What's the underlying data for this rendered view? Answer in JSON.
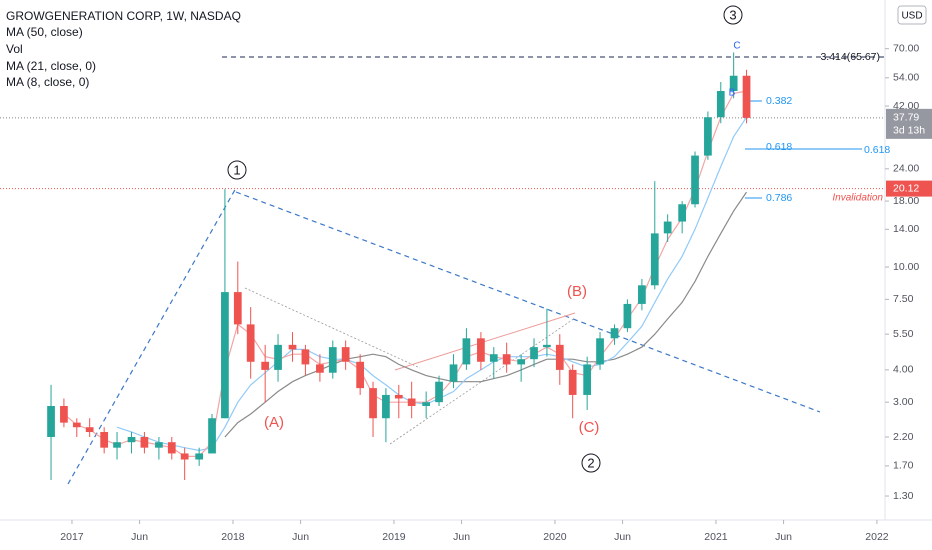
{
  "chart_data": {
    "type": "candlestick",
    "title": "GROWGENERATION CORP, 1W, NASDAQ",
    "volume_label": "Vol",
    "currency": "USD",
    "log_scale": true,
    "up_color": "#26a69a",
    "down_color": "#ef5350",
    "x": [
      2016.87,
      2016.95,
      2017.03,
      2017.11,
      2017.2,
      2017.28,
      2017.37,
      2017.45,
      2017.54,
      2017.62,
      2017.7,
      2017.79,
      2017.87,
      2017.95,
      2018.03,
      2018.11,
      2018.2,
      2018.28,
      2018.37,
      2018.45,
      2018.54,
      2018.62,
      2018.7,
      2018.79,
      2018.87,
      2018.95,
      2019.03,
      2019.11,
      2019.2,
      2019.28,
      2019.37,
      2019.45,
      2019.54,
      2019.62,
      2019.7,
      2019.79,
      2019.87,
      2019.95,
      2020.03,
      2020.11,
      2020.2,
      2020.28,
      2020.37,
      2020.45,
      2020.54,
      2020.62,
      2020.7,
      2020.79,
      2020.87,
      2020.95,
      2021.03,
      2021.11,
      2021.19
    ],
    "open": [
      2.2,
      2.9,
      2.5,
      2.4,
      2.3,
      2.0,
      2.1,
      2.2,
      2.0,
      2.1,
      1.9,
      1.8,
      1.9,
      2.6,
      8.0,
      6.0,
      4.3,
      4.0,
      5.0,
      4.8,
      4.2,
      3.9,
      4.9,
      4.3,
      3.4,
      2.6,
      3.2,
      3.1,
      2.9,
      3.0,
      3.6,
      4.2,
      5.3,
      4.3,
      4.6,
      4.2,
      4.4,
      4.9,
      5.0,
      4.0,
      3.2,
      4.2,
      5.3,
      5.8,
      7.2,
      8.5,
      13.5,
      15.0,
      17.5,
      27.0,
      38.0,
      48.0,
      55.0
    ],
    "high": [
      3.5,
      3.1,
      2.6,
      2.6,
      2.4,
      2.3,
      2.3,
      2.3,
      2.2,
      2.2,
      2.0,
      2.0,
      2.7,
      20.0,
      10.5,
      7.0,
      5.0,
      5.5,
      5.6,
      5.0,
      4.6,
      5.2,
      5.2,
      4.6,
      3.6,
      3.4,
      3.5,
      3.6,
      3.3,
      3.8,
      4.6,
      5.8,
      5.6,
      4.9,
      5.1,
      4.6,
      5.3,
      6.9,
      5.5,
      4.2,
      4.5,
      5.6,
      6.0,
      7.5,
      9.0,
      21.5,
      16.0,
      18.0,
      28.0,
      40.0,
      52.0,
      67.7,
      58.0
    ],
    "low": [
      1.5,
      2.4,
      2.2,
      2.2,
      1.9,
      1.8,
      1.9,
      1.9,
      1.8,
      1.8,
      1.5,
      1.7,
      1.9,
      2.6,
      5.5,
      3.7,
      3.0,
      3.6,
      4.3,
      3.8,
      3.6,
      3.7,
      4.0,
      3.2,
      2.2,
      2.1,
      2.6,
      2.6,
      2.6,
      2.9,
      3.4,
      4.0,
      4.0,
      3.7,
      3.9,
      3.6,
      4.1,
      4.5,
      3.5,
      2.6,
      2.8,
      4.0,
      5.0,
      5.6,
      6.8,
      8.2,
      12.5,
      13.5,
      17.0,
      26.0,
      36.0,
      45.0,
      36.0
    ],
    "close": [
      2.9,
      2.5,
      2.4,
      2.3,
      2.0,
      2.1,
      2.2,
      2.0,
      2.1,
      1.9,
      1.8,
      1.9,
      2.6,
      8.0,
      6.0,
      4.3,
      4.0,
      5.0,
      4.8,
      4.2,
      3.9,
      4.9,
      4.3,
      3.4,
      2.6,
      3.2,
      3.1,
      2.9,
      3.0,
      3.6,
      4.2,
      5.3,
      4.3,
      4.6,
      4.2,
      4.4,
      4.9,
      5.0,
      4.0,
      3.2,
      4.2,
      5.3,
      5.8,
      7.2,
      8.5,
      13.5,
      15.0,
      17.5,
      27.0,
      38.0,
      48.0,
      55.0,
      37.79
    ],
    "series": [
      {
        "name": "MA (50, close)",
        "color": "#8a8a8a",
        "values": [
          null,
          null,
          null,
          null,
          null,
          null,
          null,
          null,
          null,
          null,
          null,
          null,
          null,
          2.2,
          2.5,
          2.7,
          3.0,
          3.3,
          3.6,
          3.8,
          4.0,
          4.2,
          4.4,
          4.5,
          4.6,
          4.5,
          4.2,
          4.0,
          3.8,
          3.7,
          3.6,
          3.6,
          3.6,
          3.7,
          3.8,
          4.0,
          4.2,
          4.4,
          4.4,
          4.4,
          4.3,
          4.3,
          4.4,
          4.6,
          4.9,
          5.5,
          6.3,
          7.3,
          8.8,
          11.0,
          13.5,
          16.5,
          19.5
        ]
      },
      {
        "name": "MA (21, close, 0)",
        "color": "#90caf9",
        "values": [
          null,
          null,
          null,
          null,
          null,
          2.4,
          2.3,
          2.2,
          2.1,
          2.05,
          2.0,
          1.95,
          2.0,
          2.4,
          3.0,
          3.5,
          3.9,
          4.3,
          4.8,
          4.8,
          4.5,
          4.4,
          4.4,
          4.2,
          3.8,
          3.5,
          3.2,
          3.0,
          2.95,
          3.1,
          3.3,
          3.7,
          4.0,
          4.3,
          4.5,
          4.5,
          4.5,
          4.6,
          4.5,
          4.3,
          4.1,
          4.2,
          4.5,
          5.1,
          5.9,
          7.3,
          9.0,
          11.0,
          14.0,
          18.5,
          24.5,
          32.0,
          38.0
        ]
      },
      {
        "name": "MA (8, close, 0)",
        "color": "#f4a4a4",
        "values": [
          null,
          2.7,
          2.45,
          2.35,
          2.15,
          2.05,
          2.15,
          2.1,
          2.05,
          2.0,
          1.85,
          1.85,
          2.1,
          4.0,
          6.0,
          5.5,
          4.5,
          4.4,
          4.6,
          4.6,
          4.2,
          4.3,
          4.4,
          4.0,
          3.2,
          3.0,
          3.0,
          3.0,
          3.0,
          3.2,
          3.7,
          4.5,
          4.7,
          4.5,
          4.4,
          4.3,
          4.6,
          4.9,
          4.6,
          3.9,
          3.8,
          4.5,
          5.3,
          6.3,
          7.6,
          10.0,
          12.8,
          15.5,
          20.0,
          28.0,
          38.0,
          47.0,
          48.0
        ]
      }
    ],
    "xlim": [
      2016.553,
      2022.05
    ],
    "xticks": [
      {
        "value": 2017,
        "label": "2017"
      },
      {
        "value": 2017.42,
        "label": "Jun"
      },
      {
        "value": 2018,
        "label": "2018"
      },
      {
        "value": 2018.42,
        "label": "Jun"
      },
      {
        "value": 2019,
        "label": "2019"
      },
      {
        "value": 2019.42,
        "label": "Jun"
      },
      {
        "value": 2020,
        "label": "2020"
      },
      {
        "value": 2020.42,
        "label": "Jun"
      },
      {
        "value": 2021,
        "label": "2021"
      },
      {
        "value": 2021.42,
        "label": "Jun"
      },
      {
        "value": 2022,
        "label": "2022"
      }
    ],
    "ylim": [
      1.05,
      108
    ],
    "yticks": [
      {
        "value": 1.3,
        "label": "1.30"
      },
      {
        "value": 1.7,
        "label": "1.70"
      },
      {
        "value": 2.2,
        "label": "2.20"
      },
      {
        "value": 3,
        "label": "3.00"
      },
      {
        "value": 4,
        "label": "4.00"
      },
      {
        "value": 5.5,
        "label": "5.50"
      },
      {
        "value": 7.5,
        "label": "7.50"
      },
      {
        "value": 10,
        "label": "10.00"
      },
      {
        "value": 14,
        "label": "14.00"
      },
      {
        "value": 18,
        "label": "18.00"
      },
      {
        "value": 24,
        "label": "24.00"
      },
      {
        "value": 42,
        "label": "42.00"
      },
      {
        "value": 54,
        "label": "54.00"
      },
      {
        "value": 70,
        "label": "70.00"
      }
    ],
    "last_price": 37.79,
    "countdown": "3d 13h",
    "invalidation_level": 20.12,
    "annotations": [
      "1",
      "2",
      "3",
      "(A)",
      "(B)",
      "(C)",
      "B",
      "C",
      "3.414(65.67)",
      "0.382",
      "0.618",
      "0.618",
      "0.786",
      "Invalidation"
    ]
  }
}
